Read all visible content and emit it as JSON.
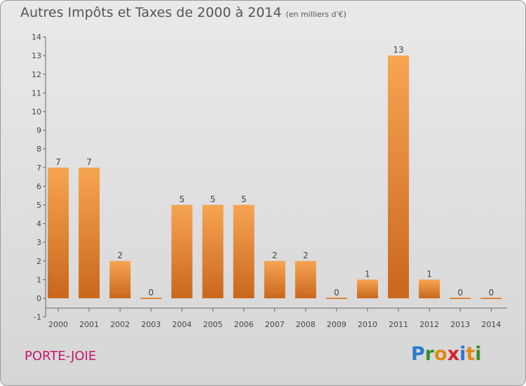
{
  "title": "Autres Impôts et Taxes de 2000 à 2014",
  "unit_note": "(en milliers d'€)",
  "commune": "PORTE-JOIE",
  "logo": {
    "letters": [
      "P",
      "r",
      "o",
      "x",
      "i",
      "t",
      "i"
    ],
    "colors": [
      "#2b7bd1",
      "#3a8f2d",
      "#e08a12",
      "#d6232b",
      "#2b7bd1",
      "#e08a12",
      "#3a8f2d"
    ]
  },
  "bar_color": "#f0953a",
  "chart_data": {
    "type": "bar",
    "title": "Autres Impôts et Taxes de 2000 à 2014",
    "xlabel": "",
    "ylabel": "",
    "categories": [
      "2000",
      "2001",
      "2002",
      "2003",
      "2004",
      "2005",
      "2006",
      "2007",
      "2008",
      "2009",
      "2010",
      "2011",
      "2012",
      "2013",
      "2014"
    ],
    "values": [
      7,
      7,
      2,
      0,
      5,
      5,
      5,
      2,
      2,
      0,
      1,
      13,
      1,
      0,
      0
    ],
    "yticks": [
      "-1",
      "0",
      "1",
      "2",
      "3",
      "4",
      "5",
      "6",
      "7",
      "8",
      "9",
      "10",
      "11",
      "12",
      "13",
      "14"
    ],
    "ylim": [
      -1,
      14
    ],
    "grid": false
  }
}
